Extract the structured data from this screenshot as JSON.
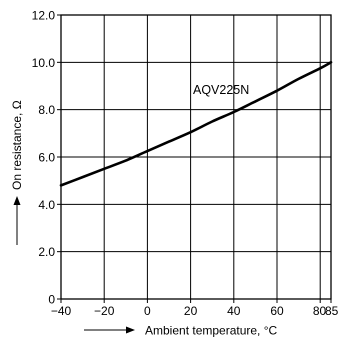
{
  "chart_data": {
    "type": "line",
    "title": "",
    "xlabel": "Ambient temperature, °C",
    "ylabel": "On resistance, Ω",
    "xlim": [
      -40,
      85
    ],
    "ylim": [
      0,
      12
    ],
    "grid": true,
    "x_ticks": [
      -40,
      -20,
      0,
      20,
      40,
      60,
      80,
      85
    ],
    "x_tick_labels": [
      "−40",
      "−20",
      "0",
      "20",
      "40",
      "60",
      "80",
      "85"
    ],
    "y_ticks": [
      0,
      2,
      4,
      6,
      8,
      10,
      12
    ],
    "y_tick_labels": [
      "0",
      "2.0",
      "4.0",
      "6.0",
      "8.0",
      "10.0",
      "12.0"
    ],
    "series": [
      {
        "name": "AQV225N",
        "x": [
          -40,
          -30,
          -20,
          -10,
          0,
          10,
          20,
          30,
          40,
          50,
          60,
          70,
          80,
          85
        ],
        "y": [
          4.8,
          5.15,
          5.5,
          5.85,
          6.25,
          6.65,
          7.05,
          7.5,
          7.9,
          8.35,
          8.8,
          9.3,
          9.75,
          10.0
        ]
      }
    ]
  }
}
